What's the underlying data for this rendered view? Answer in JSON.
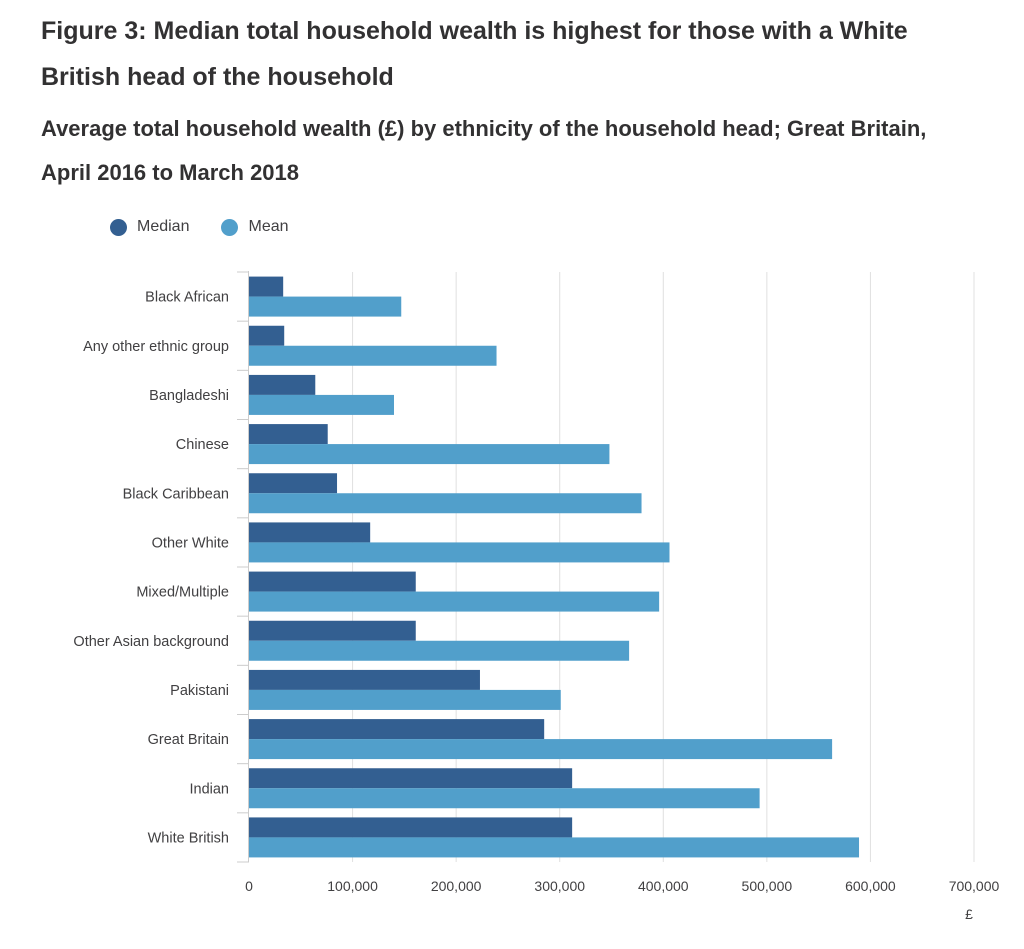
{
  "chart_data": {
    "type": "bar",
    "orientation": "horizontal",
    "title": "Figure 3: Median total household wealth is highest for those with a White British head of the household",
    "subtitle": "Average total household wealth (£) by ethnicity of the household head; Great Britain, April 2016 to March 2018",
    "xlabel": "£",
    "ylabel": "",
    "xlim": [
      0,
      700000
    ],
    "xticks": [
      0,
      100000,
      200000,
      300000,
      400000,
      500000,
      600000,
      700000
    ],
    "xtick_labels": [
      "0",
      "100,000",
      "200,000",
      "300,000",
      "400,000",
      "500,000",
      "600,000",
      "700,000"
    ],
    "grid": true,
    "legend_position": "top-left",
    "categories": [
      "Black African",
      "Any other ethnic group",
      "Bangladeshi",
      "Chinese",
      "Black Caribbean",
      "Other White",
      "Mixed/Multiple",
      "Other Asian background",
      "Pakistani",
      "Great Britain",
      "Indian",
      "White British"
    ],
    "series": [
      {
        "name": "Median",
        "color": "#335f91",
        "values": [
          33000,
          34000,
          64000,
          76000,
          85000,
          117000,
          161000,
          161000,
          223000,
          285000,
          312000,
          312000
        ]
      },
      {
        "name": "Mean",
        "color": "#519fcb",
        "values": [
          147000,
          239000,
          140000,
          348000,
          379000,
          406000,
          396000,
          367000,
          301000,
          563000,
          493000,
          589000
        ]
      }
    ]
  }
}
